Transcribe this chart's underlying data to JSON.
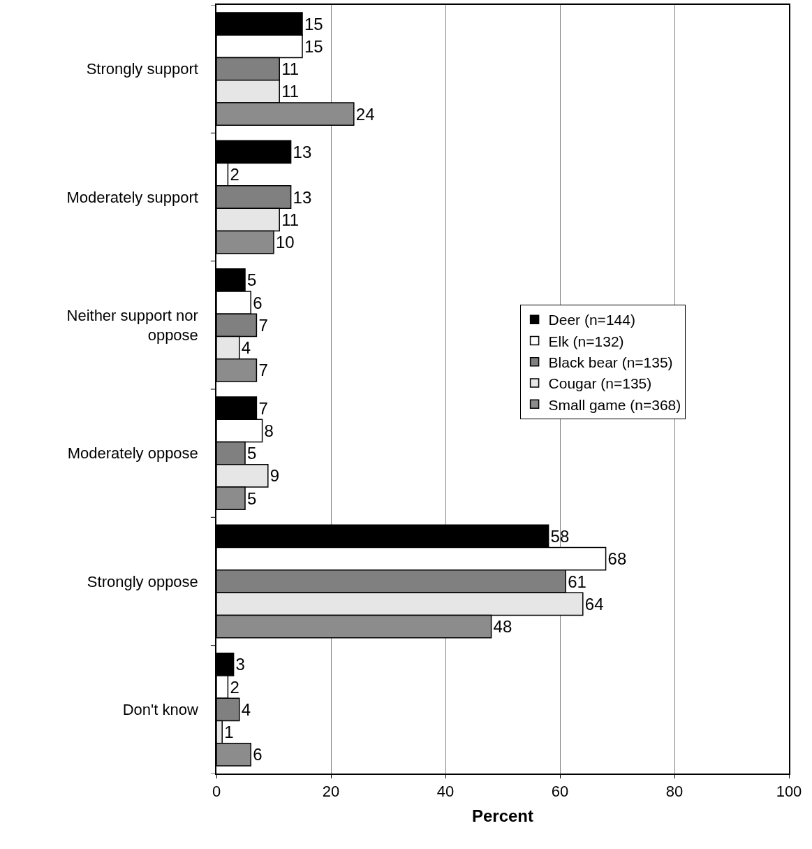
{
  "chart_data": {
    "type": "bar",
    "orientation": "horizontal",
    "xlabel": "Percent",
    "categories": [
      "Strongly support",
      "Moderately support",
      "Neither support nor oppose",
      "Moderately oppose",
      "Strongly oppose",
      "Don't know"
    ],
    "series": [
      {
        "name": "Deer (n=144)",
        "color": "#000000",
        "values": [
          15,
          13,
          5,
          7,
          58,
          3
        ]
      },
      {
        "name": "Elk (n=132)",
        "color": "#ffffff",
        "values": [
          15,
          2,
          6,
          8,
          68,
          2
        ]
      },
      {
        "name": "Black bear (n=135)",
        "color": "#808080",
        "values": [
          11,
          13,
          7,
          5,
          61,
          4
        ]
      },
      {
        "name": "Cougar (n=135)",
        "color": "#e6e6e6",
        "values": [
          11,
          11,
          4,
          9,
          64,
          1
        ]
      },
      {
        "name": "Small game (n=368)",
        "color": "#8c8c8c",
        "values": [
          24,
          10,
          7,
          5,
          48,
          6
        ]
      }
    ],
    "xlim": [
      0,
      100
    ],
    "xticks": [
      0,
      20,
      40,
      60,
      80,
      100
    ],
    "grid": "x",
    "legend": "right",
    "data_labels": true
  }
}
